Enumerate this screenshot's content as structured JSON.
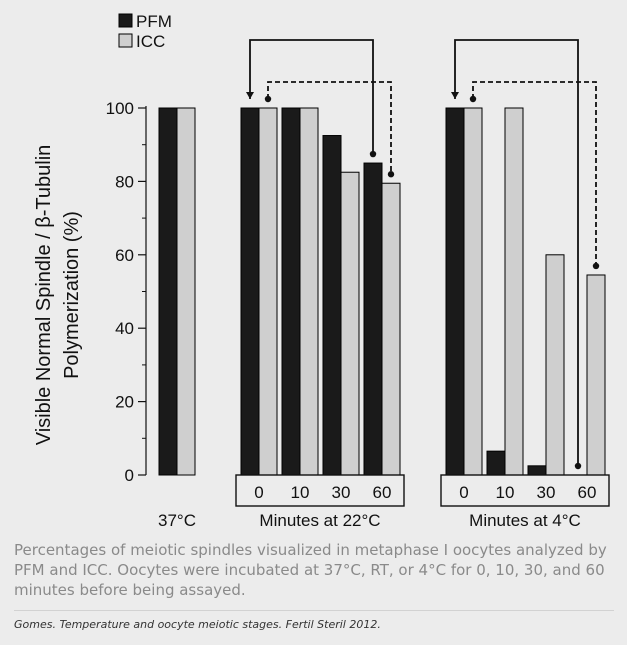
{
  "chart_data": {
    "type": "bar",
    "ylabel_line1": "Visible Normal Spindle / β-Tubulin",
    "ylabel_line2": "Polymerization (%)",
    "ylim": [
      0,
      100
    ],
    "yticks": [
      "0",
      "20",
      "40",
      "60",
      "80",
      "100"
    ],
    "legend": [
      {
        "name": "PFM",
        "color": "#1a1a1a"
      },
      {
        "name": "ICC",
        "color": "#cfcfcf"
      }
    ],
    "groups": [
      {
        "label": "37°C",
        "categories": [
          ""
        ],
        "pfm": [
          100
        ],
        "icc": [
          100
        ]
      },
      {
        "label": "Minutes at 22°C",
        "categories": [
          "0",
          "10",
          "30",
          "60"
        ],
        "pfm": [
          100,
          100,
          92.5,
          85
        ],
        "icc": [
          100,
          100,
          82.5,
          79.5
        ]
      },
      {
        "label": "Minutes at 4°C",
        "categories": [
          "0",
          "10",
          "30",
          "60"
        ],
        "pfm": [
          100,
          6.5,
          2.5,
          0
        ],
        "icc": [
          100,
          100,
          60,
          54.5
        ]
      }
    ],
    "grid": false
  },
  "caption": "Percentages of meiotic spindles visualized in metaphase I oocytes analyzed by PFM and ICC. Oocytes were incubated at 37°C, RT, or 4°C for 0, 10, 30, and 60 minutes before being assayed.",
  "citation": "Gomes. Temperature and oocyte meiotic stages. Fertil Steril 2012."
}
